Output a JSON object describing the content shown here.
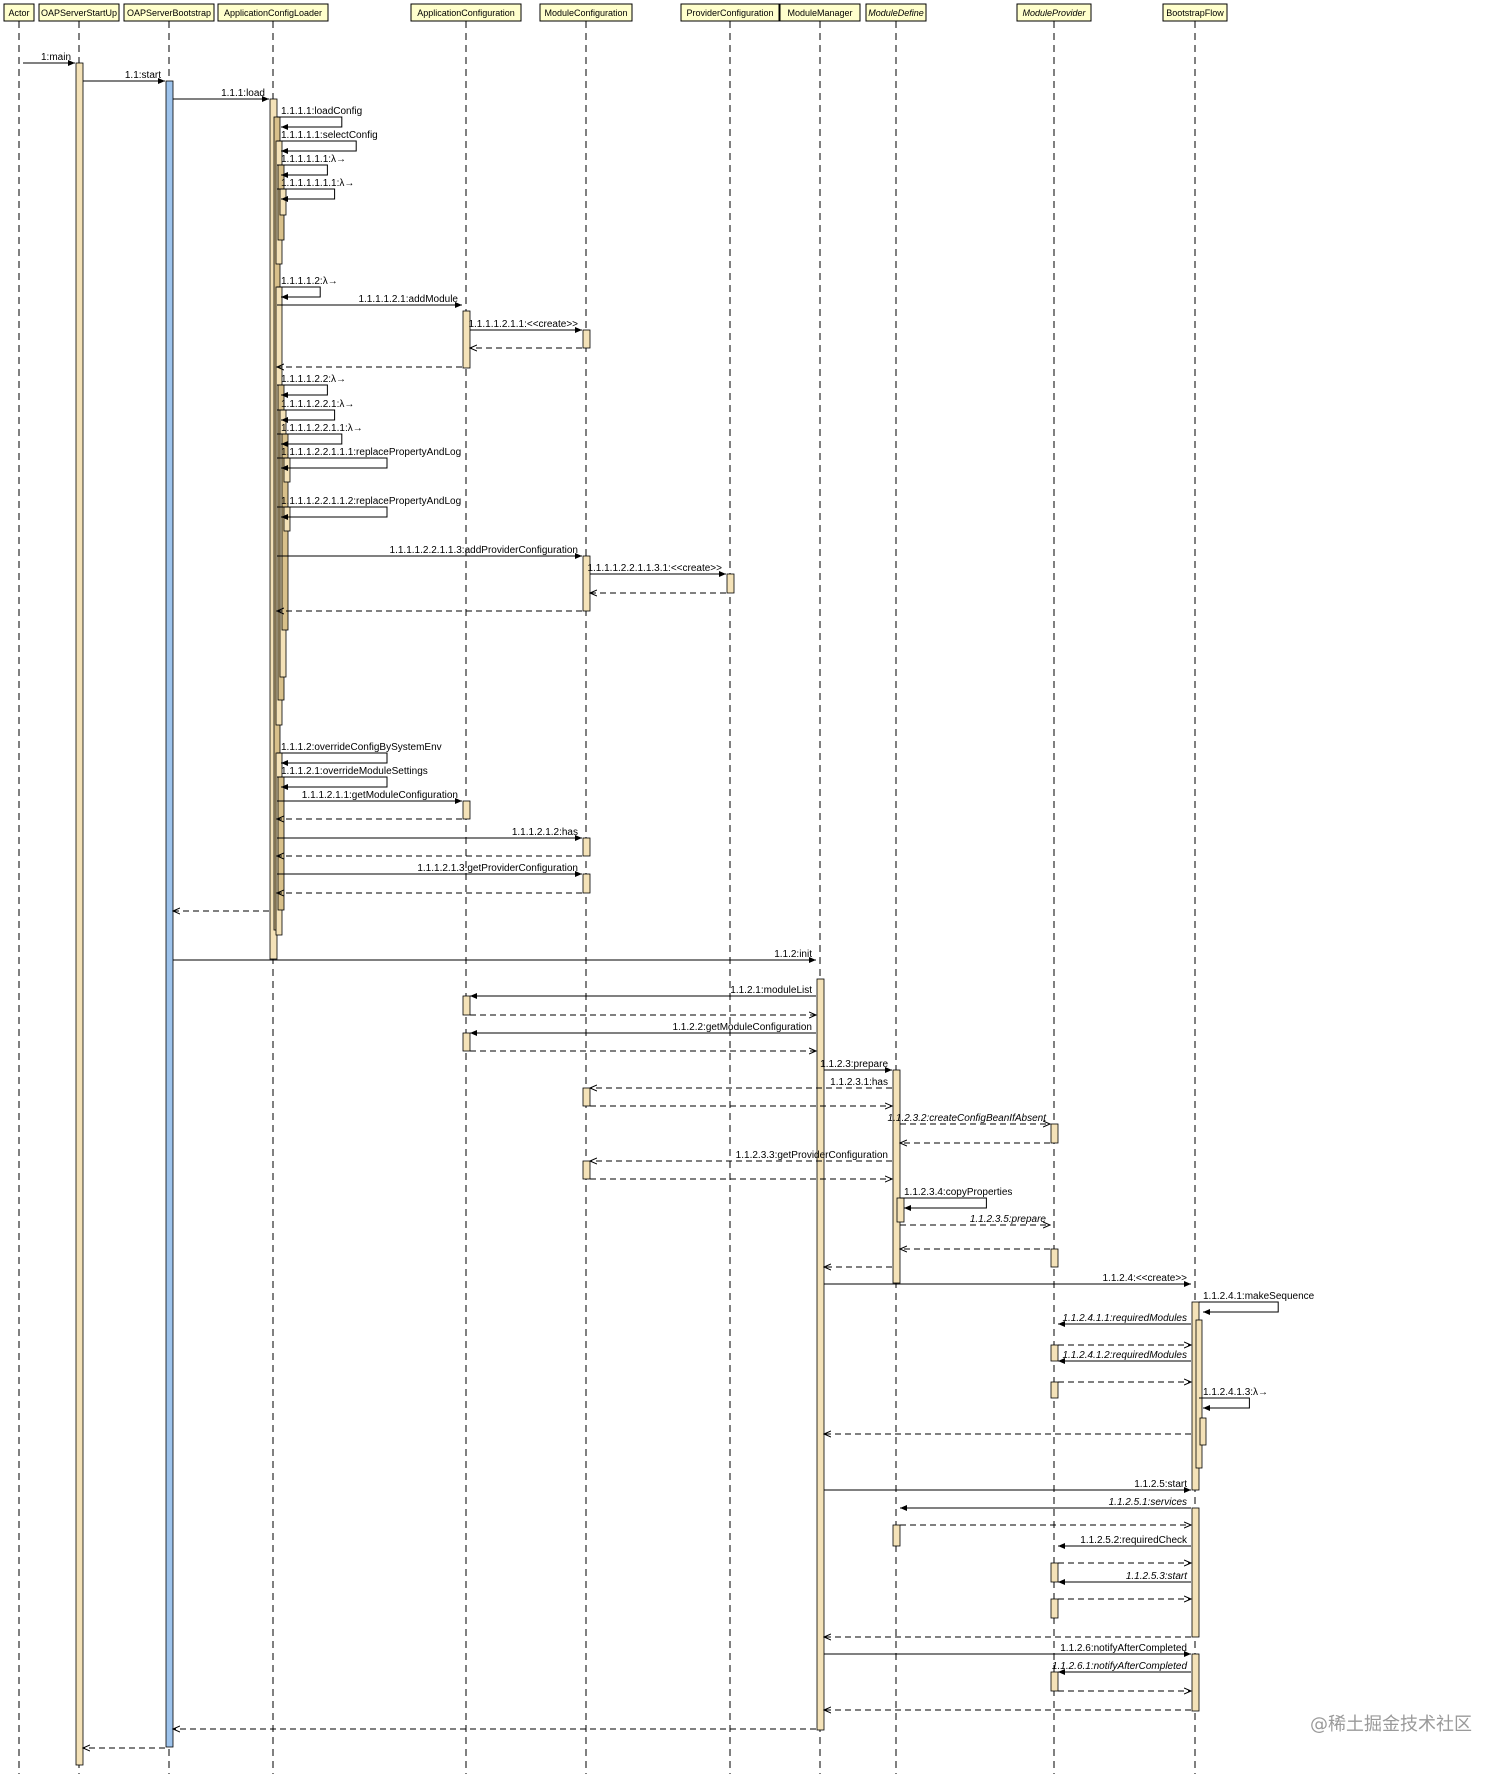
{
  "participants": [
    {
      "id": "actor",
      "label": "Actor"
    },
    {
      "id": "startup",
      "label": "OAPServerStartUp"
    },
    {
      "id": "bootstrap",
      "label": "OAPServerBootstrap"
    },
    {
      "id": "loader",
      "label": "ApplicationConfigLoader"
    },
    {
      "id": "appconf",
      "label": "ApplicationConfiguration"
    },
    {
      "id": "modconf",
      "label": "ModuleConfiguration"
    },
    {
      "id": "provconf",
      "label": "ProviderConfiguration"
    },
    {
      "id": "modmgr",
      "label": "ModuleManager"
    },
    {
      "id": "moddef",
      "label": "ModuleDefine",
      "italic": true
    },
    {
      "id": "modprov",
      "label": "ModuleProvider",
      "italic": true
    },
    {
      "id": "flow",
      "label": "BootstrapFlow"
    }
  ],
  "colors": {
    "activation": "#f4e2b8",
    "activation_shade": "#d8c08a",
    "bootstrap_activation": "#9dc3ec",
    "header_fill": "#ffffcc",
    "line": "#000000",
    "watermark": "#9a9a9a"
  },
  "messages": [
    {
      "from": "actor",
      "to": "startup",
      "label": "1:main",
      "kind": "sync"
    },
    {
      "from": "startup",
      "to": "bootstrap",
      "label": "1.1:start",
      "kind": "sync"
    },
    {
      "from": "bootstrap",
      "to": "loader",
      "label": "1.1.1:load",
      "kind": "sync"
    },
    {
      "from": "loader",
      "to": "loader",
      "label": "1.1.1.1:loadConfig",
      "kind": "self"
    },
    {
      "from": "loader",
      "to": "loader",
      "label": "1.1.1.1.1:selectConfig",
      "kind": "self"
    },
    {
      "from": "loader",
      "to": "loader",
      "label": "1.1.1.1.1.1:λ→",
      "kind": "self"
    },
    {
      "from": "loader",
      "to": "loader",
      "label": "1.1.1.1.1.1.1:λ→",
      "kind": "self"
    },
    {
      "from": "loader",
      "to": "loader",
      "label": "1.1.1.1.2:λ→",
      "kind": "self"
    },
    {
      "from": "loader",
      "to": "appconf",
      "label": "1.1.1.1.2.1:addModule",
      "kind": "sync"
    },
    {
      "from": "appconf",
      "to": "modconf",
      "label": "1.1.1.1.2.1.1:<<create>>",
      "kind": "sync"
    },
    {
      "from": "modconf",
      "to": "appconf",
      "label": "",
      "kind": "return"
    },
    {
      "from": "appconf",
      "to": "loader",
      "label": "",
      "kind": "return"
    },
    {
      "from": "loader",
      "to": "loader",
      "label": "1.1.1.1.2.2:λ→",
      "kind": "self"
    },
    {
      "from": "loader",
      "to": "loader",
      "label": "1.1.1.1.2.2.1:λ→",
      "kind": "self"
    },
    {
      "from": "loader",
      "to": "loader",
      "label": "1.1.1.1.2.2.1.1:λ→",
      "kind": "self"
    },
    {
      "from": "loader",
      "to": "loader",
      "label": "1.1.1.1.2.2.1.1.1:replacePropertyAndLog",
      "kind": "self"
    },
    {
      "from": "loader",
      "to": "loader",
      "label": "1.1.1.1.2.2.1.1.2:replacePropertyAndLog",
      "kind": "self"
    },
    {
      "from": "loader",
      "to": "modconf",
      "label": "1.1.1.1.2.2.1.1.3:addProviderConfiguration",
      "kind": "sync"
    },
    {
      "from": "modconf",
      "to": "provconf",
      "label": "1.1.1.1.2.2.1.1.3.1:<<create>>",
      "kind": "sync"
    },
    {
      "from": "provconf",
      "to": "modconf",
      "label": "",
      "kind": "return"
    },
    {
      "from": "modconf",
      "to": "loader",
      "label": "",
      "kind": "return"
    },
    {
      "from": "loader",
      "to": "loader",
      "label": "1.1.1.2:overrideConfigBySystemEnv",
      "kind": "self"
    },
    {
      "from": "loader",
      "to": "loader",
      "label": "1.1.1.2.1:overrideModuleSettings",
      "kind": "self"
    },
    {
      "from": "loader",
      "to": "appconf",
      "label": "1.1.1.2.1.1:getModuleConfiguration",
      "kind": "sync"
    },
    {
      "from": "appconf",
      "to": "loader",
      "label": "",
      "kind": "return"
    },
    {
      "from": "loader",
      "to": "modconf",
      "label": "1.1.1.2.1.2:has",
      "kind": "sync"
    },
    {
      "from": "modconf",
      "to": "loader",
      "label": "",
      "kind": "return"
    },
    {
      "from": "loader",
      "to": "modconf",
      "label": "1.1.1.2.1.3:getProviderConfiguration",
      "kind": "sync"
    },
    {
      "from": "modconf",
      "to": "loader",
      "label": "",
      "kind": "return"
    },
    {
      "from": "loader",
      "to": "bootstrap",
      "label": "",
      "kind": "return"
    },
    {
      "from": "bootstrap",
      "to": "modmgr",
      "label": "1.1.2:init",
      "kind": "sync"
    },
    {
      "from": "modmgr",
      "to": "appconf",
      "label": "1.1.2.1:moduleList",
      "kind": "sync"
    },
    {
      "from": "appconf",
      "to": "modmgr",
      "label": "",
      "kind": "return"
    },
    {
      "from": "modmgr",
      "to": "appconf",
      "label": "1.1.2.2:getModuleConfiguration",
      "kind": "sync"
    },
    {
      "from": "appconf",
      "to": "modmgr",
      "label": "",
      "kind": "return"
    },
    {
      "from": "modmgr",
      "to": "moddef",
      "label": "1.1.2.3:prepare",
      "kind": "sync"
    },
    {
      "from": "moddef",
      "to": "modconf",
      "label": "1.1.2.3.1:has",
      "kind": "async"
    },
    {
      "from": "modconf",
      "to": "moddef",
      "label": "",
      "kind": "return"
    },
    {
      "from": "moddef",
      "to": "modprov",
      "label": "1.1.2.3.2:createConfigBeanIfAbsent",
      "kind": "async",
      "italic": true
    },
    {
      "from": "modprov",
      "to": "moddef",
      "label": "",
      "kind": "return"
    },
    {
      "from": "moddef",
      "to": "modconf",
      "label": "1.1.2.3.3:getProviderConfiguration",
      "kind": "async"
    },
    {
      "from": "modconf",
      "to": "moddef",
      "label": "",
      "kind": "return"
    },
    {
      "from": "moddef",
      "to": "moddef",
      "label": "1.1.2.3.4:copyProperties",
      "kind": "self"
    },
    {
      "from": "moddef",
      "to": "modprov",
      "label": "1.1.2.3.5:prepare",
      "kind": "async",
      "italic": true
    },
    {
      "from": "modprov",
      "to": "moddef",
      "label": "",
      "kind": "return"
    },
    {
      "from": "moddef",
      "to": "modmgr",
      "label": "",
      "kind": "return"
    },
    {
      "from": "modmgr",
      "to": "flow",
      "label": "1.1.2.4:<<create>>",
      "kind": "sync"
    },
    {
      "from": "flow",
      "to": "flow",
      "label": "1.1.2.4.1:makeSequence",
      "kind": "self"
    },
    {
      "from": "flow",
      "to": "modprov",
      "label": "1.1.2.4.1.1:requiredModules",
      "kind": "sync",
      "italic": true
    },
    {
      "from": "modprov",
      "to": "flow",
      "label": "",
      "kind": "return"
    },
    {
      "from": "flow",
      "to": "modprov",
      "label": "1.1.2.4.1.2:requiredModules",
      "kind": "sync",
      "italic": true
    },
    {
      "from": "modprov",
      "to": "flow",
      "label": "",
      "kind": "return"
    },
    {
      "from": "flow",
      "to": "flow",
      "label": "1.1.2.4.1.3:λ→",
      "kind": "self"
    },
    {
      "from": "flow",
      "to": "modmgr",
      "label": "",
      "kind": "return"
    },
    {
      "from": "modmgr",
      "to": "flow",
      "label": "1.1.2.5:start",
      "kind": "sync"
    },
    {
      "from": "flow",
      "to": "moddef",
      "label": "1.1.2.5.1:services",
      "kind": "sync",
      "italic": true
    },
    {
      "from": "moddef",
      "to": "flow",
      "label": "",
      "kind": "return"
    },
    {
      "from": "flow",
      "to": "modprov",
      "label": "1.1.2.5.2:requiredCheck",
      "kind": "sync"
    },
    {
      "from": "modprov",
      "to": "flow",
      "label": "",
      "kind": "return"
    },
    {
      "from": "flow",
      "to": "modprov",
      "label": "1.1.2.5.3:start",
      "kind": "sync",
      "italic": true
    },
    {
      "from": "modprov",
      "to": "flow",
      "label": "",
      "kind": "return"
    },
    {
      "from": "flow",
      "to": "modmgr",
      "label": "",
      "kind": "return"
    },
    {
      "from": "modmgr",
      "to": "flow",
      "label": "1.1.2.6:notifyAfterCompleted",
      "kind": "sync"
    },
    {
      "from": "flow",
      "to": "modprov",
      "label": "1.1.2.6.1:notifyAfterCompleted",
      "kind": "sync",
      "italic": true
    },
    {
      "from": "modprov",
      "to": "flow",
      "label": "",
      "kind": "return"
    },
    {
      "from": "flow",
      "to": "modmgr",
      "label": "",
      "kind": "return"
    },
    {
      "from": "modmgr",
      "to": "bootstrap",
      "label": "",
      "kind": "return"
    },
    {
      "from": "bootstrap",
      "to": "startup",
      "label": "",
      "kind": "return"
    }
  ],
  "watermark": "@稀土掘金技术社区"
}
